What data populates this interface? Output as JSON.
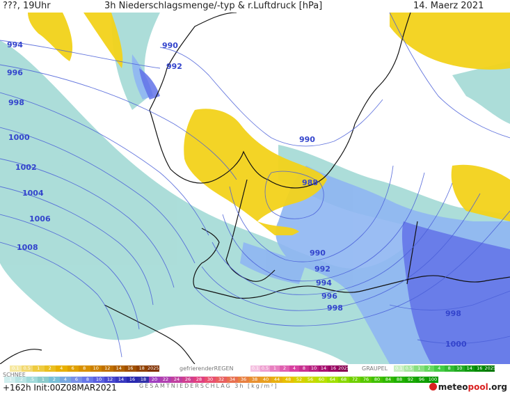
{
  "header": {
    "left": "???, 19Uhr",
    "title": "3h Niederschlagsmenge/-typ & r.Luftdruck [hPa]",
    "date": "14. Maerz 2021"
  },
  "isobars": [
    {
      "label": "994"
    },
    {
      "label": "996"
    },
    {
      "label": "998"
    },
    {
      "label": "1000"
    },
    {
      "label": "1002"
    },
    {
      "label": "1004"
    },
    {
      "label": "1006"
    },
    {
      "label": "1008"
    },
    {
      "label": "990"
    },
    {
      "label": "992"
    },
    {
      "label": "990"
    },
    {
      "label": "988"
    },
    {
      "label": "990"
    },
    {
      "label": "992"
    },
    {
      "label": "994"
    },
    {
      "label": "996"
    },
    {
      "label": "998"
    },
    {
      "label": "998"
    },
    {
      "label": "1000"
    }
  ],
  "legend": {
    "schnee_label": "SCHNEE",
    "schnee_values": [
      "0.1",
      "0.5",
      "1",
      "2",
      "4",
      "6",
      "8",
      "10",
      "12",
      "14",
      "16",
      "18",
      "2025+"
    ],
    "regen_label": "gefrierenderREGEN",
    "regen_values": [
      "0.1",
      "0.5",
      "1",
      "2",
      "4",
      "8",
      "10",
      "14",
      "16",
      "2025+"
    ],
    "graupel_label": "GRAUPEL",
    "graupel_values": [
      "0.1",
      "0.5",
      "1",
      "2",
      "4",
      "8",
      "10",
      "14",
      "16",
      "2025+"
    ],
    "gesamt_label": "GESAMTNIEDERSCHLAG 3h [kg/m²]",
    "gesamt_values": [
      ".1",
      ".2",
      ".5",
      "1",
      "2",
      "4",
      "6",
      "8",
      "10",
      "12",
      "14",
      "16",
      "18",
      "20",
      "22",
      "24",
      "26",
      "28",
      "30",
      "32",
      "34",
      "36",
      "38",
      "40",
      "44",
      "48",
      "52",
      "56",
      "60",
      "64",
      "68",
      "72",
      "76",
      "80",
      "84",
      "88",
      "92",
      "96",
      "100"
    ],
    "colors": {
      "snow": "#e8b000",
      "freezing": "#e040a0",
      "graupel": "#33cc33",
      "rain_light": "#a8dcd8",
      "rain_mid": "#8ab4f0",
      "rain_heavy": "#5a6ae8"
    }
  },
  "footer": {
    "run": "+162h Init:00Z08MAR2021",
    "logo_a": "meteo",
    "logo_b": "pool",
    "logo_c": ".org"
  }
}
